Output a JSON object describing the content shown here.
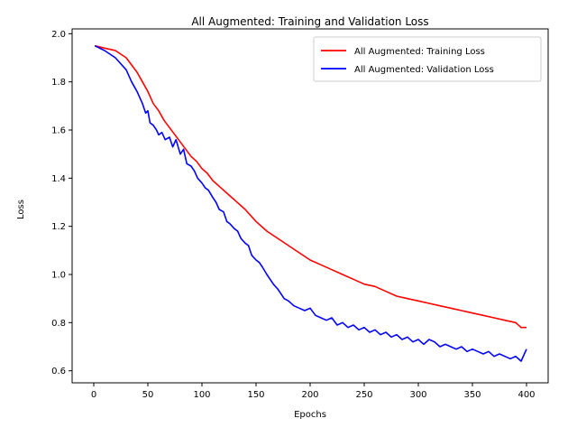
{
  "chart_data": {
    "type": "line",
    "title": "All Augmented: Training and Validation Loss",
    "xlabel": "Epochs",
    "ylabel": "Loss",
    "xlim": [
      -20,
      420
    ],
    "ylim": [
      0.55,
      2.02
    ],
    "xticks": [
      0,
      50,
      100,
      150,
      200,
      250,
      300,
      350,
      400
    ],
    "yticks": [
      0.6,
      0.8,
      1.0,
      1.2,
      1.4,
      1.6,
      1.8,
      2.0
    ],
    "ytick_labels": [
      "0.6",
      "0.8",
      "1.0",
      "1.2",
      "1.4",
      "1.6",
      "1.8",
      "2.0"
    ],
    "legend_position": "upper right",
    "grid": false,
    "series": [
      {
        "name": "All Augmented: Training Loss",
        "color": "#ff0000",
        "x": [
          1,
          10,
          20,
          30,
          35,
          40,
          45,
          50,
          55,
          60,
          65,
          70,
          75,
          80,
          85,
          90,
          95,
          100,
          105,
          110,
          115,
          120,
          125,
          130,
          140,
          150,
          160,
          170,
          180,
          190,
          200,
          210,
          220,
          230,
          240,
          250,
          260,
          270,
          280,
          290,
          300,
          310,
          320,
          330,
          340,
          350,
          360,
          370,
          380,
          390,
          395,
          400
        ],
        "values": [
          1.95,
          1.94,
          1.93,
          1.9,
          1.87,
          1.84,
          1.8,
          1.76,
          1.71,
          1.68,
          1.64,
          1.61,
          1.58,
          1.55,
          1.52,
          1.49,
          1.47,
          1.44,
          1.42,
          1.39,
          1.37,
          1.35,
          1.33,
          1.31,
          1.27,
          1.22,
          1.18,
          1.15,
          1.12,
          1.09,
          1.06,
          1.04,
          1.02,
          1.0,
          0.98,
          0.96,
          0.95,
          0.93,
          0.91,
          0.9,
          0.89,
          0.88,
          0.87,
          0.86,
          0.85,
          0.84,
          0.83,
          0.82,
          0.81,
          0.8,
          0.78,
          0.78
        ]
      },
      {
        "name": "All Augmented: Validation Loss",
        "color": "#0000ff",
        "x": [
          1,
          10,
          20,
          30,
          35,
          40,
          45,
          48,
          50,
          52,
          55,
          58,
          60,
          63,
          66,
          70,
          73,
          76,
          80,
          83,
          86,
          90,
          93,
          96,
          100,
          103,
          106,
          110,
          113,
          116,
          120,
          123,
          126,
          130,
          133,
          136,
          140,
          143,
          146,
          150,
          153,
          156,
          160,
          163,
          166,
          170,
          173,
          176,
          180,
          185,
          190,
          195,
          200,
          205,
          210,
          215,
          220,
          225,
          230,
          235,
          240,
          245,
          250,
          255,
          260,
          265,
          270,
          275,
          280,
          285,
          290,
          295,
          300,
          305,
          310,
          315,
          320,
          325,
          330,
          335,
          340,
          345,
          350,
          355,
          360,
          365,
          370,
          375,
          380,
          385,
          390,
          395,
          400
        ],
        "values": [
          1.95,
          1.93,
          1.9,
          1.85,
          1.8,
          1.76,
          1.71,
          1.67,
          1.68,
          1.63,
          1.62,
          1.6,
          1.58,
          1.59,
          1.56,
          1.57,
          1.53,
          1.56,
          1.5,
          1.52,
          1.46,
          1.45,
          1.43,
          1.4,
          1.38,
          1.36,
          1.35,
          1.32,
          1.3,
          1.27,
          1.26,
          1.22,
          1.21,
          1.19,
          1.18,
          1.15,
          1.13,
          1.12,
          1.08,
          1.06,
          1.05,
          1.03,
          1.0,
          0.98,
          0.96,
          0.94,
          0.92,
          0.9,
          0.89,
          0.87,
          0.86,
          0.85,
          0.86,
          0.83,
          0.82,
          0.81,
          0.82,
          0.79,
          0.8,
          0.78,
          0.79,
          0.77,
          0.78,
          0.76,
          0.77,
          0.75,
          0.76,
          0.74,
          0.75,
          0.73,
          0.74,
          0.72,
          0.73,
          0.71,
          0.73,
          0.72,
          0.7,
          0.71,
          0.7,
          0.69,
          0.7,
          0.68,
          0.69,
          0.68,
          0.67,
          0.68,
          0.66,
          0.67,
          0.66,
          0.65,
          0.66,
          0.64,
          0.69
        ]
      }
    ]
  }
}
